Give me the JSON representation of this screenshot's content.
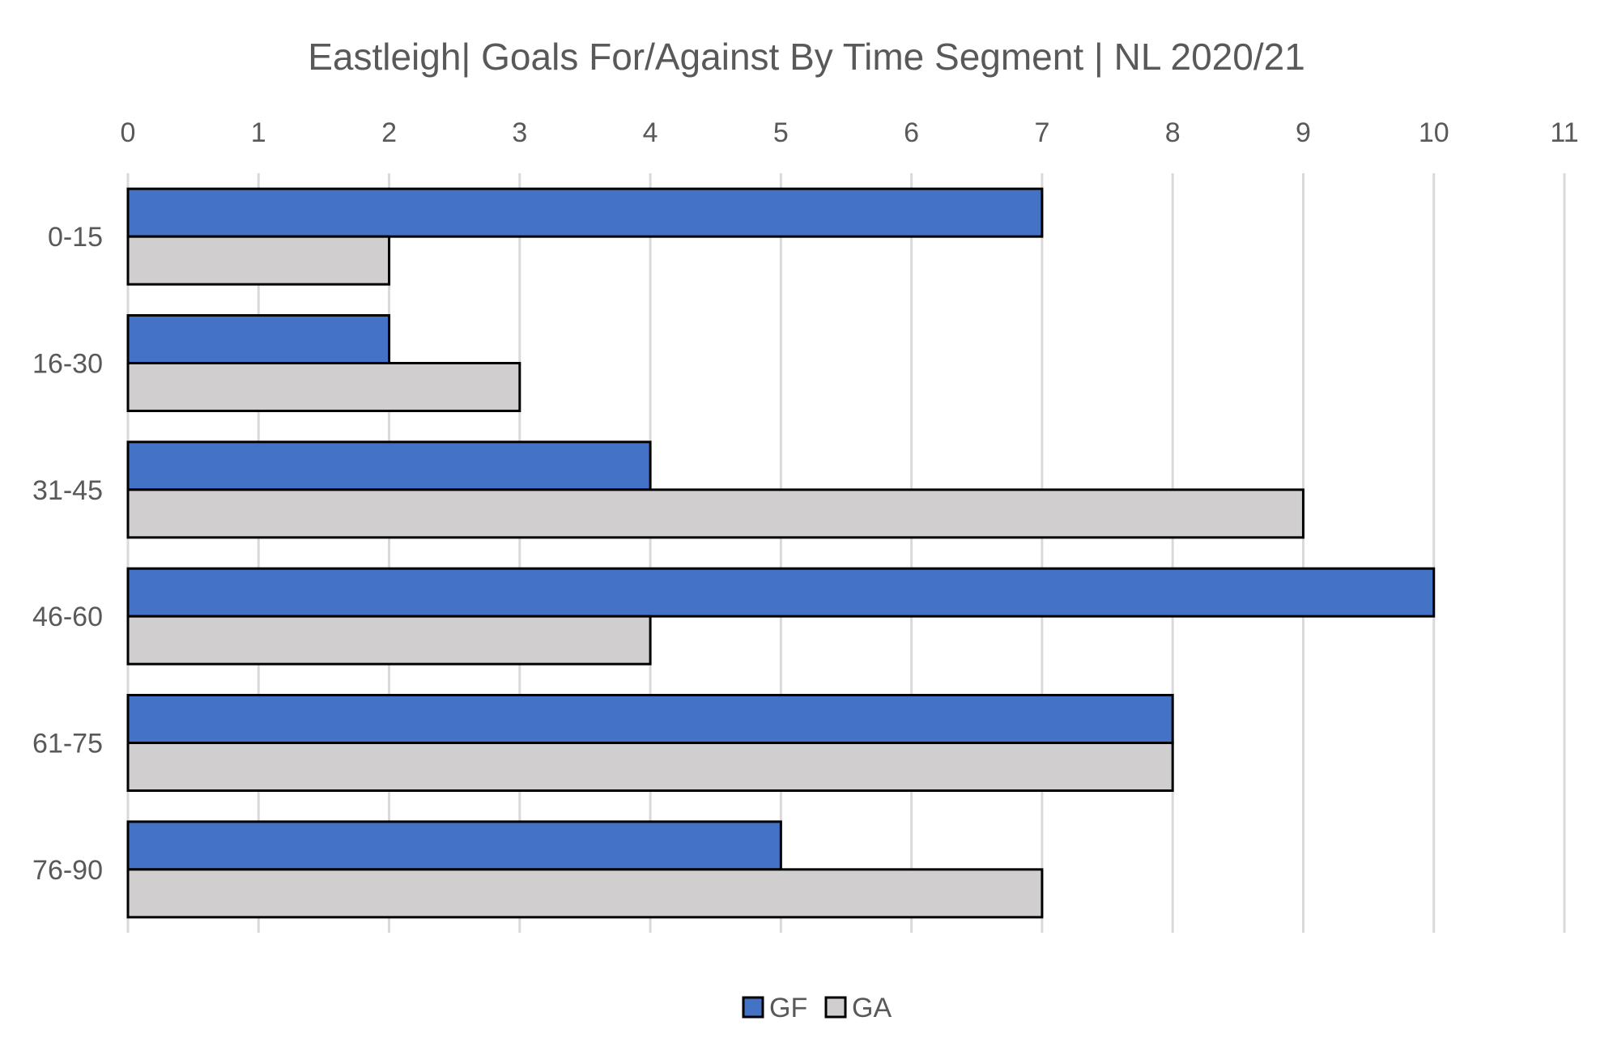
{
  "chart_data": {
    "type": "bar",
    "orientation": "horizontal",
    "title": "Eastleigh| Goals For/Against By Time Segment | NL 2020/21",
    "categories": [
      "0-15",
      "16-30",
      "31-45",
      "46-60",
      "61-75",
      "76-90"
    ],
    "series": [
      {
        "name": "GF",
        "color": "#4472c4",
        "values": [
          7,
          2,
          4,
          10,
          8,
          5
        ]
      },
      {
        "name": "GA",
        "color": "#d0cece",
        "values": [
          2,
          3,
          9,
          4,
          8,
          7
        ]
      }
    ],
    "xlim": [
      0,
      11
    ],
    "xticks": [
      "0",
      "1",
      "2",
      "3",
      "4",
      "5",
      "6",
      "7",
      "8",
      "9",
      "10",
      "11"
    ],
    "x_axis_position": "top",
    "grid": true,
    "legend": "bottom"
  }
}
